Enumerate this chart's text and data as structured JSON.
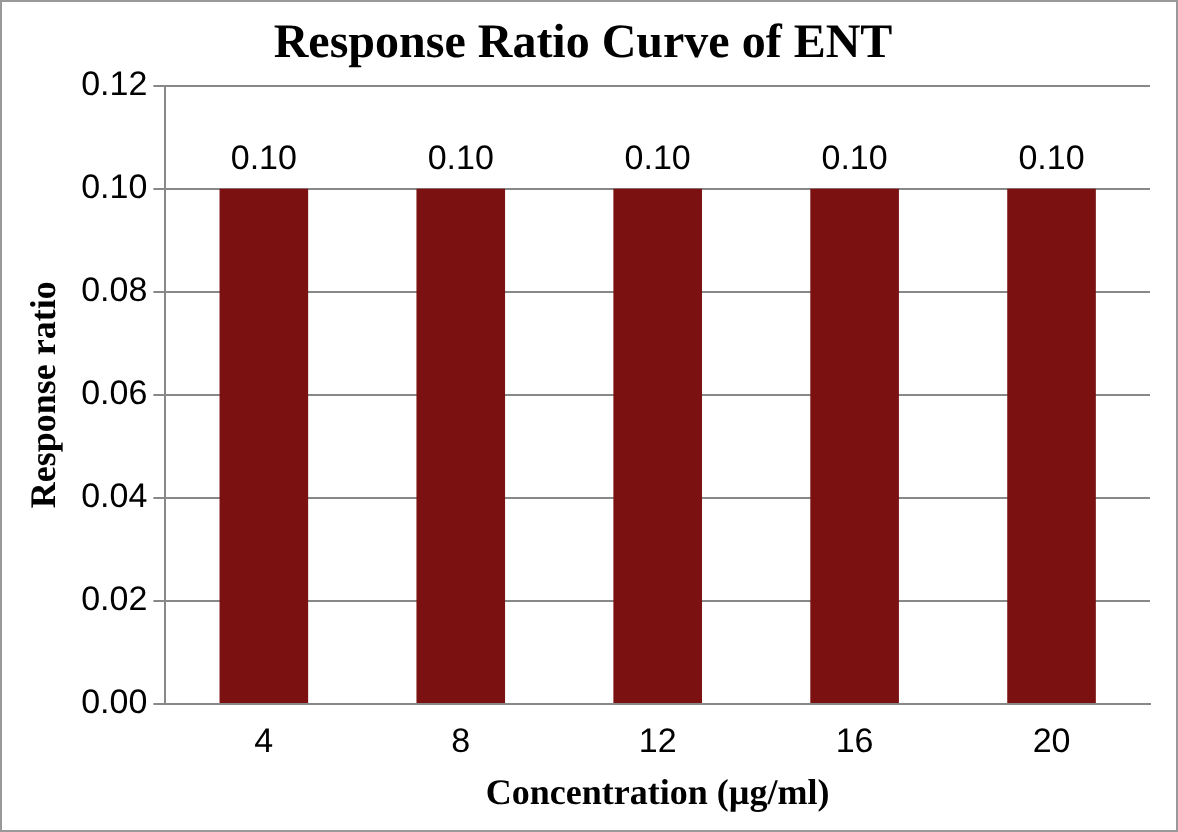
{
  "chart_data": {
    "type": "bar",
    "title": "Response Ratio Curve of ENT",
    "xlabel": "Concentration (µg/ml)",
    "ylabel": "Response ratio",
    "categories": [
      "4",
      "8",
      "12",
      "16",
      "20"
    ],
    "values": [
      0.1,
      0.1,
      0.1,
      0.1,
      0.1
    ],
    "color": "#7b1111",
    "value_labels": [
      "0.10",
      "0.10",
      "0.10",
      "0.10",
      "0.10"
    ],
    "ylim": [
      0,
      0.12
    ],
    "yticks": [
      {
        "value": 0,
        "label": "0.00"
      },
      {
        "value": 0.02,
        "label": "0.02"
      },
      {
        "value": 0.04,
        "label": "0.04"
      },
      {
        "value": 0.06,
        "label": "0.06"
      },
      {
        "value": 0.08,
        "label": "0.08"
      },
      {
        "value": 0.1,
        "label": "0.10"
      },
      {
        "value": 0.12,
        "label": "0.12"
      }
    ],
    "grid": "y",
    "legend": false
  }
}
